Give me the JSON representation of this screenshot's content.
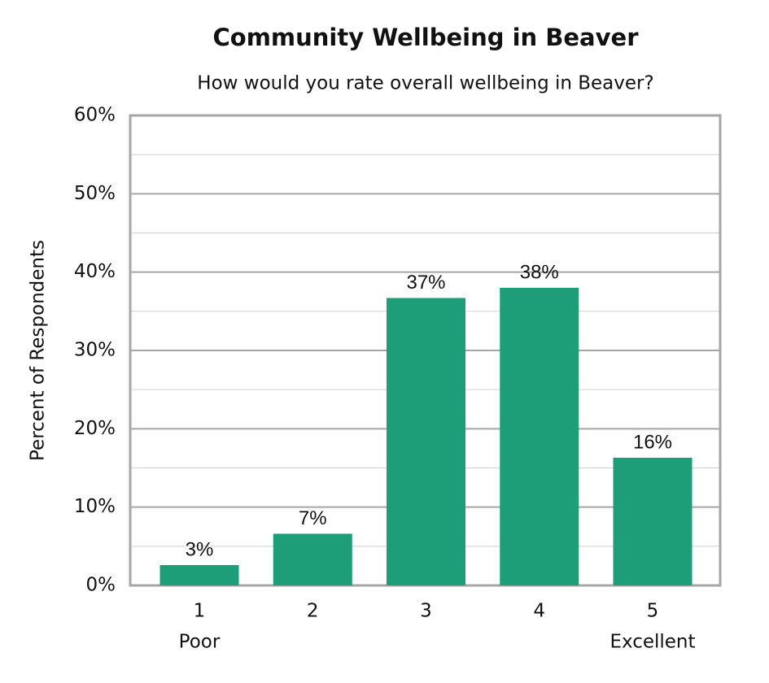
{
  "chart_data": {
    "type": "bar",
    "title": "Community Wellbeing in Beaver",
    "subtitle": "How would you rate overall wellbeing in Beaver?",
    "y_label": "Percent of Respondents",
    "categories": [
      "1",
      "2",
      "3",
      "4",
      "5"
    ],
    "category_sublabels": [
      "Poor",
      null,
      null,
      null,
      "Excellent"
    ],
    "values": [
      2.6,
      6.6,
      36.7,
      38.0,
      16.3
    ],
    "value_labels": [
      "3%",
      "7%",
      "37%",
      "38%",
      "16%"
    ],
    "color": "#1e9e78",
    "ylim": [
      0,
      60
    ],
    "yticks": [
      {
        "value": 0,
        "label": "0%"
      },
      {
        "value": 10,
        "label": "10%"
      },
      {
        "value": 20,
        "label": "20%"
      },
      {
        "value": 30,
        "label": "30%"
      },
      {
        "value": 40,
        "label": "40%"
      },
      {
        "value": 50,
        "label": "50%"
      },
      {
        "value": 60,
        "label": "60%"
      }
    ],
    "minor_yticks": [
      5,
      15,
      25,
      35,
      45,
      55
    ],
    "grid": true
  }
}
